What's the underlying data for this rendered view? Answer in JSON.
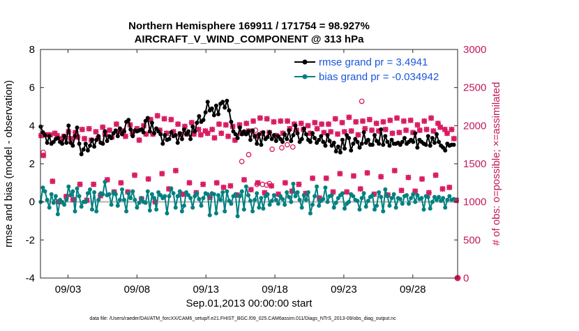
{
  "chart_data": {
    "type": "line",
    "title_line1": "Northern Hemisphere 169911 / 171754 = 98.927%",
    "title_line2": "AIRCRAFT_V_WIND_COMPONENT @ 313 hPa",
    "ylabel_left": "rmse and bias (model - observation)",
    "ylabel_right": "# of obs: o=possible; ×=assimilated",
    "xlabel": "Sep.01,2013 00:00:00 start",
    "footer": "data file: /Users/raeder/DAI/ATM_forcXX/CAM6_setup/f.e21.FHIST_BGC.f09_025.CAM6assim.011/Diags_NTrS_2013-09/obs_diag_output.nc",
    "x_range_days": [
      1,
      31.25
    ],
    "ylim_left": [
      -4,
      8
    ],
    "ylim_right": [
      0,
      3000
    ],
    "yticks_left": [
      "-4",
      "-2",
      "0",
      "2",
      "4",
      "6",
      "8"
    ],
    "yticks_right": [
      "0",
      "500",
      "1000",
      "1500",
      "2000",
      "2500",
      "3000"
    ],
    "xticks": [
      {
        "day": 3,
        "label": "09/03"
      },
      {
        "day": 8,
        "label": "09/08"
      },
      {
        "day": 13,
        "label": "09/13"
      },
      {
        "day": 18,
        "label": "09/18"
      },
      {
        "day": 23,
        "label": "09/23"
      },
      {
        "day": 28,
        "label": "09/28"
      }
    ],
    "colors": {
      "rmse": "#000000",
      "bias": "#008080",
      "obs": "#d81b60",
      "zero_line": "#bfbfbf",
      "legend_text": "#1a56db"
    },
    "series": [
      {
        "name": "rmse grand pr = 3.4941",
        "axis": "left",
        "values": [
          3.95,
          3.65,
          3.5,
          3.1,
          3.45,
          3.05,
          3.15,
          3.3,
          3.35,
          3.15,
          3.05,
          3.45,
          3.1,
          4.0,
          3.1,
          2.95,
          3.45,
          3.9,
          3.05,
          2.5,
          2.75,
          3.05,
          2.7,
          2.95,
          3.25,
          2.9,
          3.25,
          3.45,
          3.1,
          3.05,
          3.7,
          3.2,
          3.45,
          3.35,
          3.6,
          3.75,
          3.45,
          3.85,
          3.55,
          3.7,
          4.2,
          4.3,
          3.8,
          3.45,
          3.75,
          3.7,
          3.75,
          3.8,
          3.65,
          4.25,
          4.4,
          3.7,
          4.15,
          3.6,
          3.85,
          3.7,
          3.55,
          3.05,
          3.5,
          3.25,
          3.3,
          3.65,
          3.45,
          3.5,
          3.1,
          3.6,
          3.3,
          3.8,
          3.55,
          3.7,
          3.3,
          3.95,
          3.7,
          4.15,
          4.5,
          4.2,
          4.3,
          4.7,
          5.25,
          4.8,
          4.9,
          4.55,
          5.05,
          4.6,
          5.15,
          5.25,
          4.95,
          5.3,
          4.8,
          4.2,
          3.7,
          3.55,
          3.35,
          3.9,
          3.55,
          3.7,
          3.55,
          3.7,
          3.25,
          3.75,
          3.45,
          3.05,
          3.55,
          3.0,
          3.65,
          3.3,
          3.4,
          3.65,
          3.3,
          3.5,
          3.2,
          3.45,
          3.3,
          3.15,
          3.55,
          3.3,
          3.75,
          3.2,
          3.5,
          4.0,
          3.6,
          3.15,
          3.3,
          3.85,
          3.55,
          3.25,
          3.15,
          3.6,
          3.35,
          3.1,
          3.25,
          3.45,
          3.15,
          2.95,
          3.5,
          3.2,
          2.95,
          3.1,
          2.65,
          2.9,
          2.6,
          3.25,
          2.8,
          3.5,
          3.35,
          2.7,
          3.05,
          3.3,
          3.15,
          2.85,
          3.05,
          3.65,
          3.1,
          3.25,
          3.0,
          3.0,
          3.5,
          3.2,
          3.05,
          3.8,
          3.0,
          3.45,
          3.15,
          2.95,
          3.25,
          3.05,
          3.05,
          3.1,
          3.0,
          3.15,
          3.35,
          3.05,
          3.15,
          3.25,
          3.15,
          3.6,
          2.85,
          3.25,
          3.15,
          3.05,
          3.0,
          3.45,
          2.95,
          3.35,
          3.1,
          3.55,
          3.15,
          2.95,
          2.85,
          2.7,
          3.05,
          2.95,
          3.0,
          3.0
        ]
      },
      {
        "name": "bias grand pr = -0.034942",
        "axis": "left",
        "values": [
          0.0,
          0.75,
          0.55,
          0.1,
          -0.3,
          0.4,
          -0.05,
          0.3,
          -0.65,
          0.1,
          0.0,
          -0.15,
          0.1,
          0.8,
          0.35,
          0.55,
          -0.5,
          0.7,
          0.3,
          -0.25,
          0.0,
          0.0,
          0.45,
          0.65,
          -0.4,
          0.5,
          -0.5,
          0.1,
          0.45,
          0.4,
          1.05,
          0.35,
          0.4,
          -0.15,
          0.5,
          0.4,
          -0.2,
          0.1,
          0.65,
          0.1,
          -0.5,
          0.45,
          0.2,
          0.55,
          0.1,
          -0.3,
          -0.05,
          0.2,
          0.0,
          -0.05,
          0.55,
          -0.45,
          0.4,
          0.2,
          -0.4,
          0.5,
          0.35,
          0.2,
          0.3,
          -0.6,
          0.3,
          0.7,
          0.45,
          -0.3,
          0.3,
          0.55,
          -0.5,
          -0.2,
          0.5,
          0.35,
          0.2,
          -0.3,
          0.3,
          0.45,
          0.15,
          -0.2,
          0.2,
          0.45,
          0.4,
          -0.7,
          0.45,
          0.4,
          -0.6,
          0.35,
          0.1,
          0.5,
          -0.5,
          0.55,
          0.05,
          -0.1,
          0.3,
          0.4,
          -0.75,
          0.3,
          0.55,
          -0.4,
          0.8,
          0.35,
          0.05,
          -0.5,
          0.1,
          0.45,
          -0.3,
          0.2,
          -0.35,
          0.3,
          0.4,
          -0.15,
          0.05,
          0.35,
          0.1,
          -0.1,
          0.3,
          0.15,
          -0.15,
          0.5,
          0.25,
          0.0,
          0.95,
          0.3,
          0.5,
          0.1,
          -0.3,
          0.35,
          0.1,
          0.5,
          -0.6,
          -0.15,
          0.3,
          0.8,
          -0.2,
          0.05,
          0.15,
          0.75,
          0.0,
          0.3,
          0.35,
          -0.3,
          -0.05,
          0.2,
          0.35,
          0.45,
          -0.35,
          -0.1,
          0.0,
          0.4,
          0.3,
          0.1,
          0.05,
          -0.4,
          0.2,
          0.45,
          -0.25,
          0.05,
          0.25,
          0.35,
          -0.4,
          -0.2,
          0.5,
          0.25,
          -0.5,
          0.65,
          0.3,
          -0.2,
          0.2,
          0.4,
          -0.3,
          0.2,
          0.15,
          -0.1,
          0.3,
          0.35,
          -0.1,
          0.2,
          0.4,
          0.0,
          0.35,
          0.15,
          0.2,
          -0.4,
          0.3,
          0.25,
          -0.35,
          0.0,
          0.25,
          0.1,
          0.25,
          0.05,
          0.2,
          -0.3,
          0.1,
          0.3,
          0.1,
          0.15
        ]
      },
      {
        "name": "obs_assimilated",
        "axis": "right",
        "values": [
          1870,
          1610,
          1880,
          1880,
          1880,
          1270,
          1900,
          1870,
          1000,
          1830,
          1860,
          1070,
          1920,
          1830,
          1030,
          1910,
          1850,
          1230,
          1950,
          1830,
          1020,
          1960,
          1810,
          1230,
          1920,
          1830,
          1080,
          1980,
          1890,
          1290,
          1940,
          1850,
          1130,
          2020,
          1920,
          1250,
          1930,
          1860,
          1130,
          2010,
          1900,
          1350,
          1960,
          1810,
          1040,
          2000,
          1890,
          1300,
          2080,
          1890,
          1000,
          2130,
          1940,
          1370,
          2090,
          1900,
          1170,
          2080,
          1920,
          1410,
          2020,
          1890,
          1100,
          1990,
          1890,
          1250,
          2040,
          1890,
          1120,
          1950,
          1880,
          1230,
          1930,
          1900,
          1060,
          1950,
          1840,
          1250,
          2020,
          1900,
          1190,
          2010,
          1860,
          1210,
          1990,
          1810,
          1090,
          2010,
          1900,
          1290,
          2030,
          1930,
          1160,
          2060,
          1860,
          1250,
          2100,
          1900,
          1120,
          2090,
          1910,
          1210,
          2050,
          1870,
          1100,
          2060,
          1900,
          1250,
          2060,
          1960,
          1140,
          2020,
          1940,
          1230,
          2030,
          1950,
          1110,
          2000,
          1900,
          1310,
          2040,
          1960,
          1050,
          2020,
          1910,
          1310,
          2020,
          1920,
          1130,
          2090,
          1890,
          1370,
          2040,
          1920,
          1130,
          2110,
          1930,
          1340,
          2050,
          1880,
          1170,
          2060,
          1960,
          1380,
          2080,
          1940,
          1100,
          2030,
          1930,
          1330,
          2050,
          1950,
          1090,
          2070,
          1900,
          1410,
          2100,
          1910,
          1150,
          2060,
          1940,
          1320,
          2070,
          1910,
          1140,
          2010,
          1940,
          1300,
          2060,
          1950,
          1120,
          2100,
          1930,
          1350,
          2030,
          1980,
          1170,
          1950,
          1900,
          1190,
          1950,
          1830,
          1020
        ]
      },
      {
        "name": "obs_possible_extra",
        "axis": "right",
        "values": [
          {
            "x": 1.2,
            "y": 1650
          },
          {
            "x": 15.6,
            "y": 1530
          },
          {
            "x": 16.1,
            "y": 1620
          },
          {
            "x": 16.6,
            "y": 1940
          },
          {
            "x": 16.7,
            "y": 1230
          },
          {
            "x": 17.1,
            "y": 1230
          },
          {
            "x": 17.4,
            "y": 1220
          },
          {
            "x": 17.6,
            "y": 1240
          },
          {
            "x": 17.8,
            "y": 1690
          },
          {
            "x": 18.5,
            "y": 1710
          },
          {
            "x": 18.9,
            "y": 1750
          },
          {
            "x": 19.3,
            "y": 1720
          },
          {
            "x": 24.3,
            "y": 2320
          },
          {
            "x": 31.25,
            "y": 0
          }
        ]
      }
    ],
    "legend": {
      "position": "top-right",
      "entries": [
        "rmse grand pr = 3.4941",
        "bias grand pr = -0.034942"
      ]
    }
  }
}
